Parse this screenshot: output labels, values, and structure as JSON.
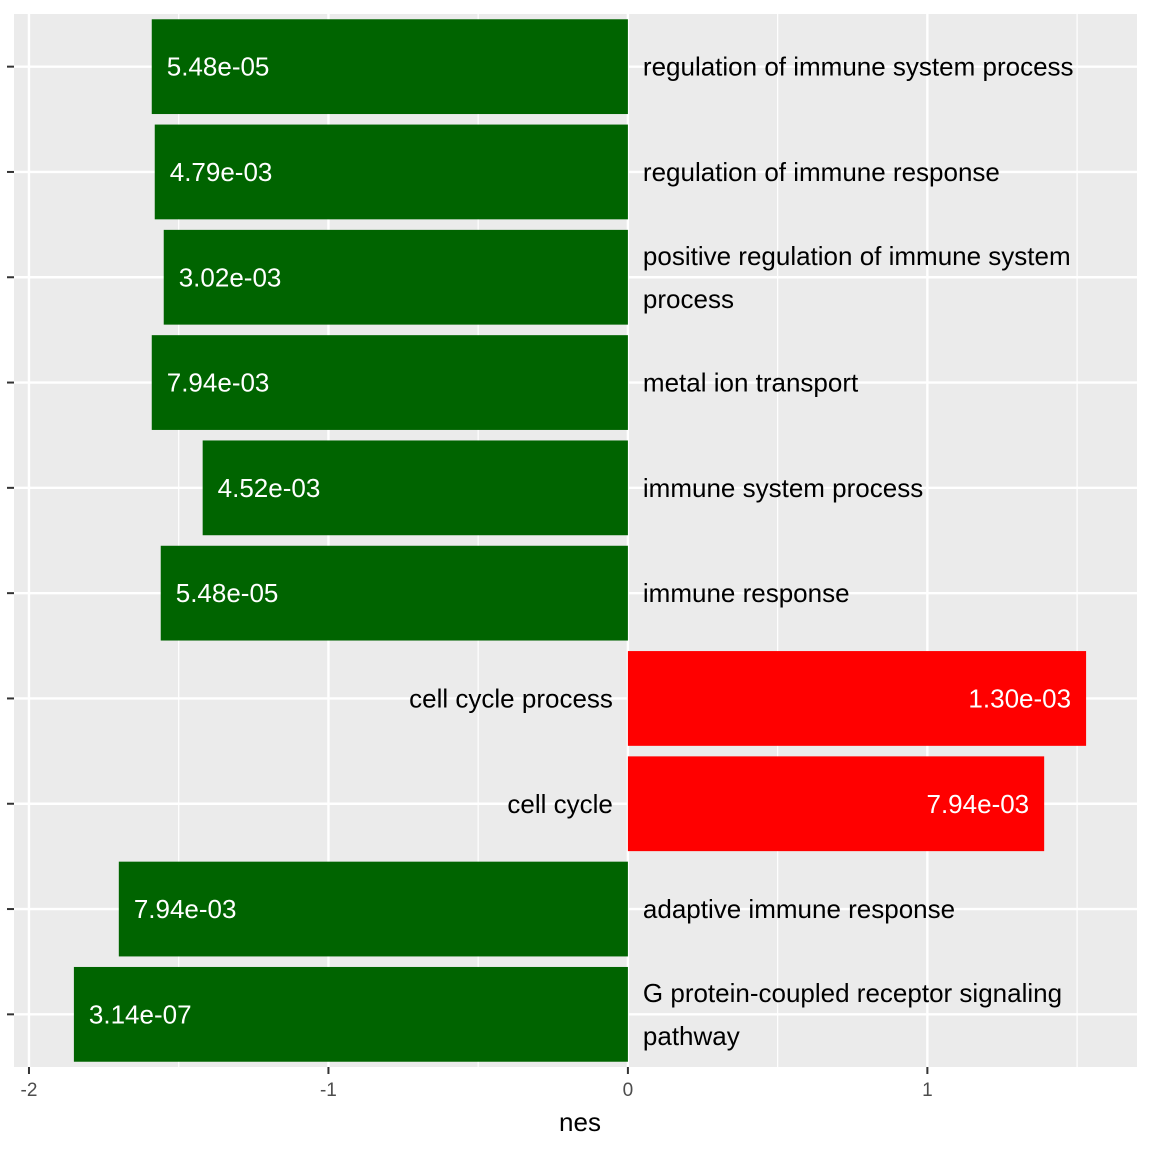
{
  "chart_data": {
    "type": "bar",
    "orientation": "horizontal",
    "title": "",
    "xlabel": "nes",
    "ylabel": "",
    "xlim": [
      -2.05,
      1.7
    ],
    "x_ticks": [
      -2,
      -1,
      0,
      1
    ],
    "x_tick_labels": [
      "-2",
      "-1",
      "0",
      "1"
    ],
    "grid": true,
    "legend": "none",
    "colors": {
      "negative": "#006400",
      "positive": "#FF0000",
      "panel": "#EBEBEB",
      "grid": "#FFFFFF"
    },
    "categories": [
      [
        "regulation of immune system process"
      ],
      [
        "regulation of immune response"
      ],
      [
        "positive regulation of immune system",
        "process"
      ],
      [
        "metal ion transport"
      ],
      [
        "immune system process"
      ],
      [
        "immune response"
      ],
      [
        "cell cycle process"
      ],
      [
        "cell cycle"
      ],
      [
        "adaptive immune response"
      ],
      [
        "G protein-coupled receptor signaling",
        "pathway"
      ]
    ],
    "values": [
      -1.59,
      -1.58,
      -1.55,
      -1.59,
      -1.42,
      -1.56,
      1.53,
      1.39,
      -1.7,
      -1.85
    ],
    "bar_labels": [
      "5.48e-05",
      "4.79e-03",
      "3.02e-03",
      "7.94e-03",
      "4.52e-03",
      "5.48e-05",
      "1.30e-03",
      "7.94e-03",
      "7.94e-03",
      "3.14e-07"
    ]
  }
}
